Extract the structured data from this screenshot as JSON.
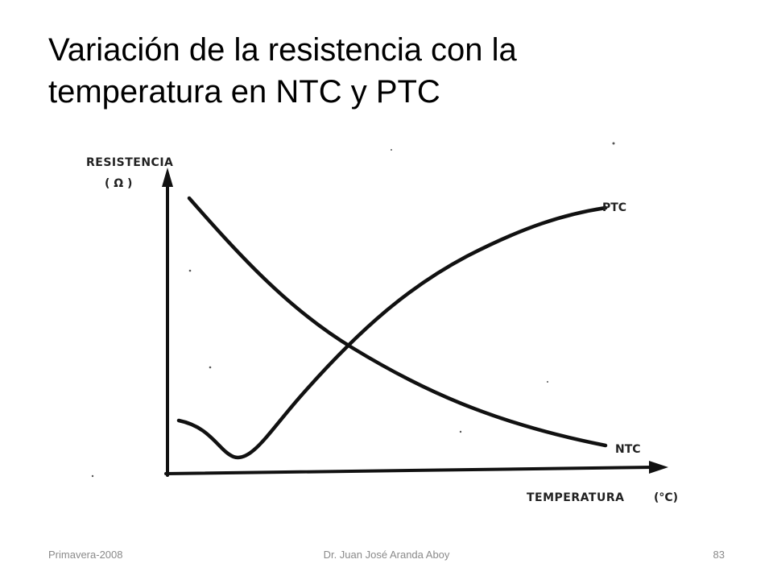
{
  "slide": {
    "title_line1": "Variación de la resistencia con la",
    "title_line2": "temperatura en NTC y PTC"
  },
  "diagram": {
    "y_axis_label": "RESISTENCIA",
    "y_axis_unit": "( Ω )",
    "x_axis_label": "TEMPERATURA",
    "x_axis_unit": "(°C)",
    "curves": {
      "ptc_label": "PTC",
      "ntc_label": "NTC"
    },
    "line_color": "#111111"
  },
  "footer": {
    "left": "Primavera-2008",
    "center": "Dr. Juan José Aranda Aboy",
    "page_number": "83"
  }
}
